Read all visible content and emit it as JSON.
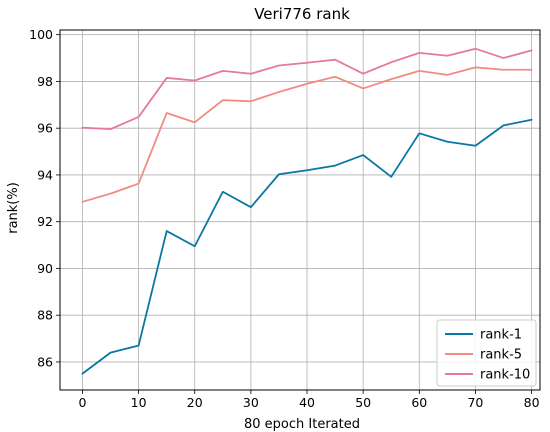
{
  "chart_data": {
    "type": "line",
    "title": "Veri776 rank",
    "xlabel": "80 epoch Iterated",
    "ylabel": "rank(%)",
    "x": [
      0,
      5,
      10,
      15,
      20,
      25,
      30,
      35,
      40,
      45,
      50,
      55,
      60,
      65,
      70,
      75,
      80
    ],
    "xlim": [
      -4,
      81.5
    ],
    "ylim": [
      84.8,
      100.2
    ],
    "xticks": [
      0,
      10,
      20,
      30,
      40,
      50,
      60,
      70,
      80
    ],
    "yticks": [
      86,
      88,
      90,
      92,
      94,
      96,
      98,
      100
    ],
    "grid": true,
    "legend_position": "bottom-right",
    "series": [
      {
        "name": "rank-1",
        "color": "#0b76a3",
        "values": [
          85.5,
          86.4,
          86.7,
          91.6,
          90.95,
          93.28,
          92.62,
          94.03,
          94.2,
          94.4,
          94.85,
          93.92,
          95.78,
          95.42,
          95.25,
          96.12,
          96.36
        ]
      },
      {
        "name": "rank-5",
        "color": "#f28b82",
        "values": [
          92.85,
          93.2,
          93.63,
          96.65,
          96.25,
          97.2,
          97.15,
          97.55,
          97.9,
          98.2,
          97.7,
          98.1,
          98.45,
          98.28,
          98.6,
          98.5,
          98.5
        ]
      },
      {
        "name": "rank-10",
        "color": "#e57a9a",
        "values": [
          96.02,
          95.96,
          96.48,
          98.15,
          98.04,
          98.45,
          98.33,
          98.68,
          98.8,
          98.93,
          98.33,
          98.82,
          99.22,
          99.1,
          99.4,
          99.0,
          99.33
        ]
      }
    ]
  }
}
